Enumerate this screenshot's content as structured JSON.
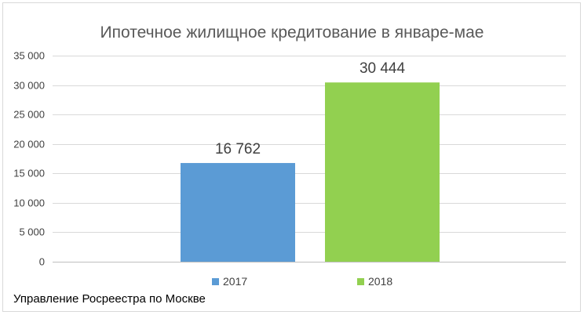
{
  "chart_data": {
    "type": "bar",
    "title": "Ипотечное жилищное кредитование в январе-мае",
    "xlabel": "",
    "ylabel": "",
    "ylim": [
      0,
      35000
    ],
    "yticks": [
      0,
      5000,
      10000,
      15000,
      20000,
      25000,
      30000,
      35000
    ],
    "ytick_labels": [
      "0",
      "5 000",
      "10 000",
      "15 000",
      "20 000",
      "25 000",
      "30 000",
      "35 000"
    ],
    "grid": true,
    "legend_position": "bottom",
    "series": [
      {
        "name": "2017",
        "value": 16762,
        "label": "16 762",
        "color": "#5b9bd5"
      },
      {
        "name": "2018",
        "value": 30444,
        "label": "30 444",
        "color": "#92d050"
      }
    ]
  },
  "footer": {
    "source": "Управление Росреестра по Москве"
  }
}
